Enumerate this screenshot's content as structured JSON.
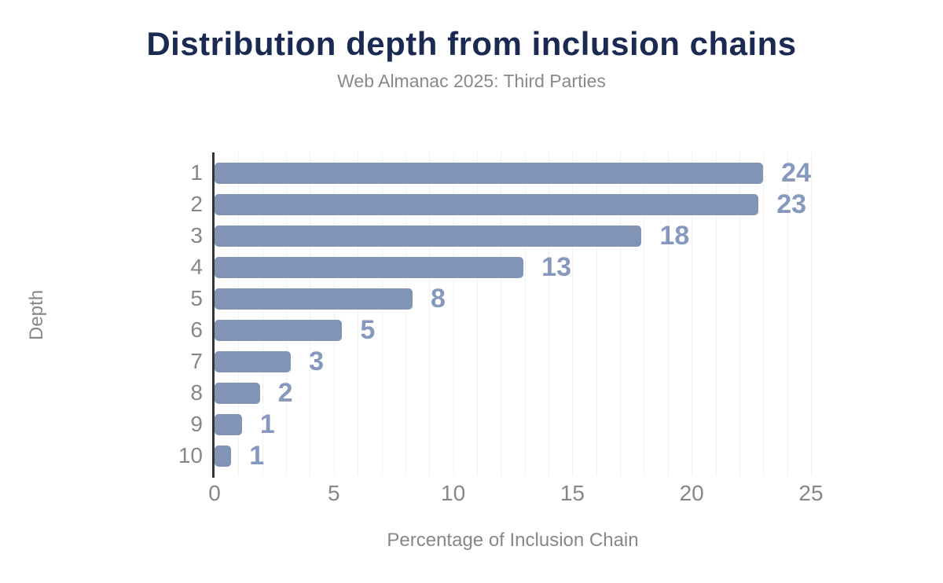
{
  "header": {
    "title": "Distribution depth from inclusion chains",
    "subtitle": "Web Almanac 2025: Third Parties"
  },
  "chart_data": {
    "type": "bar",
    "orientation": "horizontal",
    "title": "Distribution depth from inclusion chains",
    "subtitle": "Web Almanac 2025: Third Parties",
    "xlabel": "Percentage of Inclusion Chain",
    "ylabel": "Depth",
    "categories": [
      "1",
      "2",
      "3",
      "4",
      "5",
      "6",
      "7",
      "8",
      "9",
      "10"
    ],
    "values": [
      23.9,
      22.8,
      17.9,
      12.95,
      8.3,
      5.35,
      3.2,
      1.9,
      1.15,
      0.7
    ],
    "value_labels": [
      "24",
      "23",
      "18",
      "13",
      "8",
      "5",
      "3",
      "2",
      "1",
      "1"
    ],
    "xlim": [
      0,
      25
    ],
    "xticks": [
      0,
      5,
      10,
      15,
      20,
      25
    ],
    "grid": "vertical minor gridlines every 1 unit",
    "legend": "none",
    "colors": {
      "bar": "#8294b6",
      "data_label": "#8698bd",
      "title": "#1b2a52",
      "axis_text": "#85878a",
      "gridline": "#f1f1f1",
      "axis_line": "#333333",
      "background": "#ffffff"
    }
  }
}
